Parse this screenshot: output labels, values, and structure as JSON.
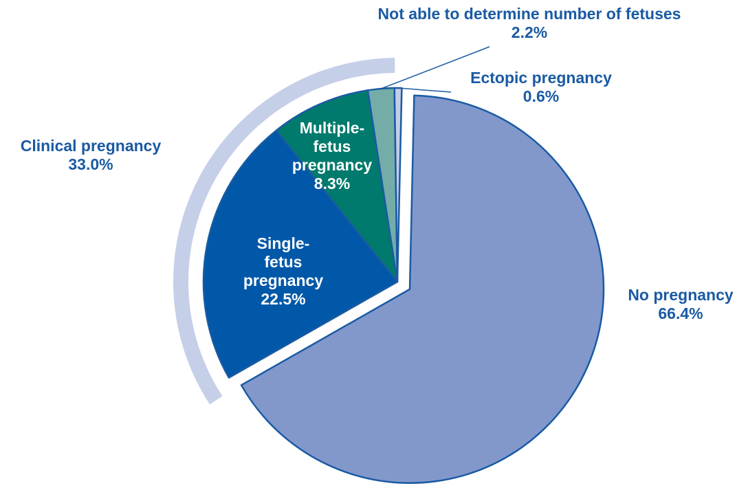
{
  "chart_data": {
    "type": "pie",
    "slices": [
      {
        "label_lines": [
          "No pregnancy"
        ],
        "value": 66.4,
        "value_label": "66.4%",
        "color": "#8298cb",
        "exploded": true
      },
      {
        "label_lines": [
          "Single-",
          "fetus",
          "pregnancy"
        ],
        "value": 22.5,
        "value_label": "22.5%",
        "color": "#0158a8"
      },
      {
        "label_lines": [
          "Multiple-",
          "fetus",
          "pregnancy"
        ],
        "value": 8.3,
        "value_label": "8.3%",
        "color": "#007a6c"
      },
      {
        "label_lines": [
          "Not able to determine number of fetuses"
        ],
        "value": 2.2,
        "value_label": "2.2%",
        "color": "#74ada8"
      },
      {
        "label_lines": [
          "Ectopic pregnancy"
        ],
        "value": 0.6,
        "value_label": "0.6%",
        "color": "#c4cde6"
      }
    ],
    "group": {
      "label": "Clinical pregnancy",
      "value": 33.0,
      "value_label": "33.0%",
      "color": "#c6cfe8"
    },
    "outline_color": "#1a5aa3",
    "label_color": "#1a5aa3"
  }
}
